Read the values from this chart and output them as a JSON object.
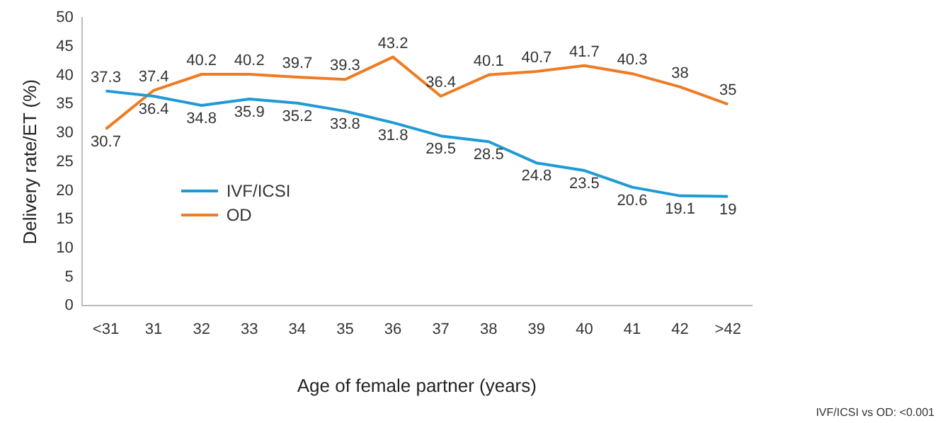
{
  "chart_data": {
    "type": "line",
    "xlabel": "Age of female partner (years)",
    "ylabel": "Delivery rate/ET (%)",
    "categories": [
      "<31",
      "31",
      "32",
      "33",
      "34",
      "35",
      "36",
      "37",
      "38",
      "39",
      "40",
      "41",
      "42",
      ">42"
    ],
    "series": [
      {
        "name": "IVF/ICSI",
        "color": "#1f9ad6",
        "values": [
          37.3,
          36.4,
          34.8,
          35.9,
          35.2,
          33.8,
          31.8,
          29.5,
          28.5,
          24.8,
          23.5,
          20.6,
          19.1,
          19
        ]
      },
      {
        "name": "OD",
        "color": "#ef7b22",
        "values": [
          30.7,
          37.4,
          40.2,
          40.2,
          39.7,
          39.3,
          43.2,
          36.4,
          40.1,
          40.7,
          41.7,
          40.3,
          38,
          35
        ]
      }
    ],
    "ylim": [
      0,
      50
    ],
    "yticks": [
      0,
      5,
      10,
      15,
      20,
      25,
      30,
      35,
      40,
      45,
      50
    ],
    "grid": false,
    "legend": "bottom left",
    "marker": "none",
    "line_style": "solid",
    "data_labels": true,
    "annotations": [
      "IVF/ICSI vs OD: <0.001"
    ]
  }
}
